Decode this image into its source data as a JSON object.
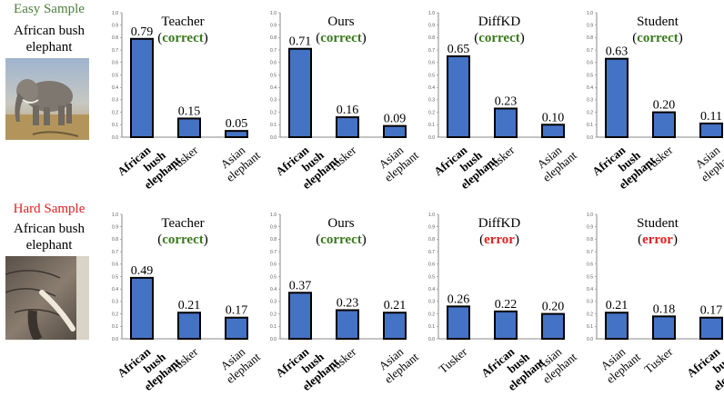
{
  "colors": {
    "bar": "#4472C4",
    "easy": "#4E7F3B",
    "hard": "#E02020",
    "correct": "#3B7A1E",
    "error": "#E02020"
  },
  "rows": [
    {
      "tag": "Easy Sample",
      "label_line1": "African bush",
      "label_line2": "elephant",
      "image_icon": "elephant-photo"
    },
    {
      "tag": "Hard Sample",
      "label_line1": "African bush",
      "label_line2": "elephant",
      "image_icon": "elephant-closeup-photo"
    }
  ],
  "chart_data": [
    {
      "type": "bar",
      "title": "Teacher",
      "verdict": "correct",
      "ylim": [
        0,
        1
      ],
      "yticks": [
        "0.0",
        "0.1",
        "0.2",
        "0.3",
        "0.4",
        "0.5",
        "0.6",
        "0.7",
        "0.8",
        "0.9",
        "1.0"
      ],
      "categories": [
        "African bush elephant",
        "Tusker",
        "Asian elephant"
      ],
      "values": [
        0.79,
        0.15,
        0.05
      ],
      "value_labels": [
        "0.79",
        "0.15",
        "0.05"
      ],
      "bold_category": 0
    },
    {
      "type": "bar",
      "title": "Ours",
      "verdict": "correct",
      "ylim": [
        0,
        1
      ],
      "yticks": [
        "0.0",
        "0.1",
        "0.2",
        "0.3",
        "0.4",
        "0.5",
        "0.6",
        "0.7",
        "0.8",
        "0.9",
        "1.0"
      ],
      "categories": [
        "African bush elephant",
        "Tusker",
        "Asian elephant"
      ],
      "values": [
        0.71,
        0.16,
        0.09
      ],
      "value_labels": [
        "0.71",
        "0.16",
        "0.09"
      ],
      "bold_category": 0
    },
    {
      "type": "bar",
      "title": "DiffKD",
      "verdict": "correct",
      "ylim": [
        0,
        1
      ],
      "yticks": [
        "0.0",
        "0.1",
        "0.2",
        "0.3",
        "0.4",
        "0.5",
        "0.6",
        "0.7",
        "0.8",
        "0.9",
        "1.0"
      ],
      "categories": [
        "African bush elephant",
        "Tusker",
        "Asian elephant"
      ],
      "values": [
        0.65,
        0.23,
        0.1
      ],
      "value_labels": [
        "0.65",
        "0.23",
        "0.10"
      ],
      "bold_category": 0
    },
    {
      "type": "bar",
      "title": "Student",
      "verdict": "correct",
      "ylim": [
        0,
        1
      ],
      "yticks": [
        "0.0",
        "0.1",
        "0.2",
        "0.3",
        "0.4",
        "0.5",
        "0.6",
        "0.7",
        "0.8",
        "0.9",
        "1.0"
      ],
      "categories": [
        "African bush elephant",
        "Tusker",
        "Asian elephant"
      ],
      "values": [
        0.63,
        0.2,
        0.11
      ],
      "value_labels": [
        "0.63",
        "0.20",
        "0.11"
      ],
      "bold_category": 0
    },
    {
      "type": "bar",
      "title": "Teacher",
      "verdict": "correct",
      "ylim": [
        0,
        1
      ],
      "yticks": [
        "0.0",
        "0.1",
        "0.2",
        "0.3",
        "0.4",
        "0.5",
        "0.6",
        "0.7",
        "0.8",
        "0.9",
        "1.0"
      ],
      "categories": [
        "African bush elephant",
        "Tusker",
        "Asian elephant"
      ],
      "values": [
        0.49,
        0.21,
        0.17
      ],
      "value_labels": [
        "0.49",
        "0.21",
        "0.17"
      ],
      "bold_category": 0
    },
    {
      "type": "bar",
      "title": "Ours",
      "verdict": "correct",
      "ylim": [
        0,
        1
      ],
      "yticks": [
        "0.0",
        "0.1",
        "0.2",
        "0.3",
        "0.4",
        "0.5",
        "0.6",
        "0.7",
        "0.8",
        "0.9",
        "1.0"
      ],
      "categories": [
        "African bush elephant",
        "Tusker",
        "Asian elephant"
      ],
      "values": [
        0.37,
        0.23,
        0.21
      ],
      "value_labels": [
        "0.37",
        "0.23",
        "0.21"
      ],
      "bold_category": 0
    },
    {
      "type": "bar",
      "title": "DiffKD",
      "verdict": "error",
      "ylim": [
        0,
        1
      ],
      "yticks": [
        "0.0",
        "0.1",
        "0.2",
        "0.3",
        "0.4",
        "0.5",
        "0.6",
        "0.7",
        "0.8",
        "0.9",
        "1.0"
      ],
      "categories": [
        "Tusker",
        "African bush elephant",
        "Asian elephant"
      ],
      "values": [
        0.26,
        0.22,
        0.2
      ],
      "value_labels": [
        "0.26",
        "0.22",
        "0.20"
      ],
      "bold_category": 1
    },
    {
      "type": "bar",
      "title": "Student",
      "verdict": "error",
      "ylim": [
        0,
        1
      ],
      "yticks": [
        "0.0",
        "0.1",
        "0.2",
        "0.3",
        "0.4",
        "0.5",
        "0.6",
        "0.7",
        "0.8",
        "0.9",
        "1.0"
      ],
      "categories": [
        "Asian elephant",
        "Tusker",
        "African bush elephant"
      ],
      "values": [
        0.21,
        0.18,
        0.17
      ],
      "value_labels": [
        "0.21",
        "0.18",
        "0.17"
      ],
      "bold_category": 2
    }
  ]
}
